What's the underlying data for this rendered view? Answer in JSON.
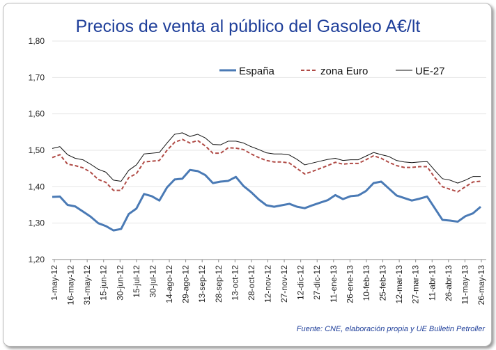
{
  "chart_data": {
    "type": "line",
    "title": "Precios de venta al público del Gasoleo A€/lt",
    "xlabel": "",
    "ylabel": "",
    "ylim": [
      1.2,
      1.8
    ],
    "yticks": [
      "1,20",
      "1,30",
      "1,40",
      "1,50",
      "1,60",
      "1,70",
      "1,80"
    ],
    "ytick_values": [
      1.2,
      1.3,
      1.4,
      1.5,
      1.6,
      1.7,
      1.8
    ],
    "xtick_labels": [
      "1-may-12",
      "16-may-12",
      "31-may-12",
      "15-jun-12",
      "30-jun-12",
      "15-jul-12",
      "30-jul-12",
      "14-ago-12",
      "29-ago-12",
      "13-sep-12",
      "28-sep-12",
      "13-oct-12",
      "28-oct-12",
      "12-nov-12",
      "27-nov-12",
      "12-dic-12",
      "27-dic-12",
      "11-ene-13",
      "26-ene-13",
      "10-feb-13",
      "25-feb-13",
      "12-mar-13",
      "27-mar-13",
      "11-abr-13",
      "26-abr-13",
      "11-may-13",
      "26-may-13"
    ],
    "grid": true,
    "legend_position": "top-right",
    "series": [
      {
        "name": "España",
        "color": "#4a7ab5",
        "style": "solid",
        "values": [
          1.372,
          1.373,
          1.35,
          1.346,
          1.332,
          1.318,
          1.3,
          1.292,
          1.28,
          1.284,
          1.325,
          1.34,
          1.38,
          1.374,
          1.362,
          1.398,
          1.42,
          1.422,
          1.446,
          1.443,
          1.432,
          1.41,
          1.414,
          1.416,
          1.427,
          1.402,
          1.385,
          1.365,
          1.349,
          1.345,
          1.349,
          1.353,
          1.345,
          1.341,
          1.349,
          1.356,
          1.363,
          1.377,
          1.366,
          1.374,
          1.376,
          1.388,
          1.41,
          1.414,
          1.395,
          1.376,
          1.369,
          1.362,
          1.367,
          1.373,
          1.341,
          1.309,
          1.307,
          1.304,
          1.319,
          1.327,
          1.345
        ]
      },
      {
        "name": "zona Euro",
        "color": "#b04a45",
        "style": "dashed",
        "values": [
          1.48,
          1.488,
          1.462,
          1.458,
          1.452,
          1.44,
          1.42,
          1.412,
          1.39,
          1.39,
          1.425,
          1.436,
          1.468,
          1.47,
          1.472,
          1.5,
          1.522,
          1.53,
          1.52,
          1.527,
          1.512,
          1.492,
          1.492,
          1.507,
          1.506,
          1.502,
          1.49,
          1.48,
          1.472,
          1.468,
          1.468,
          1.465,
          1.45,
          1.435,
          1.442,
          1.45,
          1.458,
          1.467,
          1.462,
          1.464,
          1.464,
          1.474,
          1.485,
          1.478,
          1.467,
          1.458,
          1.453,
          1.453,
          1.455,
          1.455,
          1.425,
          1.4,
          1.393,
          1.386,
          1.4,
          1.413,
          1.415
        ]
      },
      {
        "name": "UE-27",
        "color": "#111111",
        "style": "solid-thin",
        "values": [
          1.505,
          1.51,
          1.488,
          1.478,
          1.474,
          1.462,
          1.448,
          1.44,
          1.418,
          1.415,
          1.445,
          1.46,
          1.49,
          1.492,
          1.494,
          1.52,
          1.544,
          1.548,
          1.538,
          1.544,
          1.534,
          1.516,
          1.515,
          1.525,
          1.525,
          1.52,
          1.51,
          1.502,
          1.493,
          1.49,
          1.49,
          1.487,
          1.475,
          1.46,
          1.465,
          1.47,
          1.475,
          1.478,
          1.472,
          1.474,
          1.474,
          1.484,
          1.494,
          1.488,
          1.483,
          1.472,
          1.468,
          1.466,
          1.468,
          1.469,
          1.445,
          1.422,
          1.418,
          1.41,
          1.418,
          1.428,
          1.428
        ]
      }
    ]
  },
  "source": "Fuente: CNE, elaboración propia y UE Bulletin Petroller"
}
